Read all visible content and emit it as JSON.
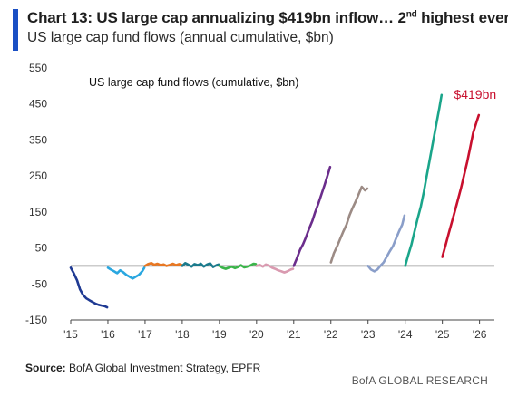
{
  "header": {
    "title_main": "Chart 13: US large cap annualizing $419bn inflow… 2",
    "title_sup": "nd",
    "title_tail": " highest ever",
    "subtitle": "US large cap fund flows (annual cumulative, $bn)"
  },
  "footer": {
    "source_label": "Source:",
    "source_text": " BofA Global Investment Strategy, EPFR",
    "brand": "BofA GLOBAL RESEARCH"
  },
  "chart_data": {
    "type": "line",
    "title": "US large cap fund flows (cumulative, $bn)",
    "xlabel": "",
    "ylabel": "",
    "x_ticks": [
      "'15",
      "'16",
      "'17",
      "'18",
      "'19",
      "'20",
      "'21",
      "'22",
      "'23",
      "'24",
      "'25",
      "'26"
    ],
    "y_ticks": [
      550,
      450,
      350,
      250,
      150,
      50,
      -50,
      -150
    ],
    "xlim": [
      2015,
      2026.4
    ],
    "ylim": [
      -150,
      550
    ],
    "grid": false,
    "zero_line": true,
    "annotation": {
      "text": "$419bn",
      "color": "#c8102e"
    },
    "series": [
      {
        "color": "#1f3a93",
        "points": [
          [
            2015.0,
            -5
          ],
          [
            2015.08,
            -20
          ],
          [
            2015.17,
            -40
          ],
          [
            2015.25,
            -65
          ],
          [
            2015.33,
            -80
          ],
          [
            2015.42,
            -90
          ],
          [
            2015.5,
            -95
          ],
          [
            2015.58,
            -100
          ],
          [
            2015.67,
            -105
          ],
          [
            2015.75,
            -108
          ],
          [
            2015.83,
            -110
          ],
          [
            2015.92,
            -112
          ],
          [
            2015.98,
            -115
          ]
        ]
      },
      {
        "color": "#2aa7e0",
        "points": [
          [
            2016.0,
            -5
          ],
          [
            2016.08,
            -10
          ],
          [
            2016.17,
            -15
          ],
          [
            2016.25,
            -20
          ],
          [
            2016.33,
            -12
          ],
          [
            2016.42,
            -18
          ],
          [
            2016.5,
            -25
          ],
          [
            2016.58,
            -30
          ],
          [
            2016.67,
            -35
          ],
          [
            2016.75,
            -30
          ],
          [
            2016.83,
            -25
          ],
          [
            2016.92,
            -15
          ],
          [
            2016.98,
            -5
          ]
        ]
      },
      {
        "color": "#e87722",
        "points": [
          [
            2017.0,
            0
          ],
          [
            2017.08,
            5
          ],
          [
            2017.17,
            8
          ],
          [
            2017.25,
            3
          ],
          [
            2017.33,
            6
          ],
          [
            2017.42,
            2
          ],
          [
            2017.5,
            4
          ],
          [
            2017.58,
            0
          ],
          [
            2017.67,
            3
          ],
          [
            2017.75,
            6
          ],
          [
            2017.83,
            2
          ],
          [
            2017.92,
            5
          ],
          [
            2017.98,
            3
          ]
        ]
      },
      {
        "color": "#1a7a8c",
        "points": [
          [
            2018.0,
            0
          ],
          [
            2018.08,
            8
          ],
          [
            2018.17,
            3
          ],
          [
            2018.25,
            -2
          ],
          [
            2018.33,
            5
          ],
          [
            2018.42,
            2
          ],
          [
            2018.5,
            6
          ],
          [
            2018.58,
            -2
          ],
          [
            2018.67,
            4
          ],
          [
            2018.75,
            7
          ],
          [
            2018.83,
            -3
          ],
          [
            2018.92,
            2
          ],
          [
            2018.98,
            4
          ]
        ]
      },
      {
        "color": "#3bb54a",
        "points": [
          [
            2019.0,
            0
          ],
          [
            2019.08,
            -5
          ],
          [
            2019.17,
            -8
          ],
          [
            2019.25,
            -5
          ],
          [
            2019.33,
            -2
          ],
          [
            2019.42,
            -6
          ],
          [
            2019.5,
            -3
          ],
          [
            2019.58,
            2
          ],
          [
            2019.67,
            -4
          ],
          [
            2019.75,
            -2
          ],
          [
            2019.83,
            1
          ],
          [
            2019.92,
            6
          ],
          [
            2019.98,
            5
          ]
        ]
      },
      {
        "color": "#d99ab0",
        "points": [
          [
            2020.0,
            0
          ],
          [
            2020.08,
            3
          ],
          [
            2020.17,
            -2
          ],
          [
            2020.25,
            4
          ],
          [
            2020.33,
            1
          ],
          [
            2020.42,
            -5
          ],
          [
            2020.5,
            -8
          ],
          [
            2020.58,
            -12
          ],
          [
            2020.67,
            -15
          ],
          [
            2020.75,
            -18
          ],
          [
            2020.83,
            -15
          ],
          [
            2020.92,
            -10
          ],
          [
            2020.98,
            -8
          ]
        ]
      },
      {
        "color": "#6b2d8c",
        "points": [
          [
            2021.0,
            0
          ],
          [
            2021.08,
            20
          ],
          [
            2021.17,
            45
          ],
          [
            2021.25,
            60
          ],
          [
            2021.33,
            80
          ],
          [
            2021.42,
            105
          ],
          [
            2021.5,
            125
          ],
          [
            2021.58,
            150
          ],
          [
            2021.67,
            175
          ],
          [
            2021.75,
            200
          ],
          [
            2021.83,
            225
          ],
          [
            2021.92,
            255
          ],
          [
            2021.98,
            275
          ]
        ]
      },
      {
        "color": "#9c8b85",
        "points": [
          [
            2022.0,
            10
          ],
          [
            2022.08,
            35
          ],
          [
            2022.17,
            55
          ],
          [
            2022.25,
            75
          ],
          [
            2022.33,
            95
          ],
          [
            2022.42,
            115
          ],
          [
            2022.5,
            140
          ],
          [
            2022.58,
            160
          ],
          [
            2022.67,
            180
          ],
          [
            2022.75,
            200
          ],
          [
            2022.83,
            220
          ],
          [
            2022.92,
            210
          ],
          [
            2022.98,
            215
          ]
        ]
      },
      {
        "color": "#8a9ec9",
        "points": [
          [
            2023.0,
            0
          ],
          [
            2023.08,
            -10
          ],
          [
            2023.17,
            -15
          ],
          [
            2023.25,
            -10
          ],
          [
            2023.33,
            0
          ],
          [
            2023.42,
            10
          ],
          [
            2023.5,
            25
          ],
          [
            2023.58,
            40
          ],
          [
            2023.67,
            55
          ],
          [
            2023.75,
            75
          ],
          [
            2023.83,
            95
          ],
          [
            2023.92,
            115
          ],
          [
            2023.98,
            140
          ]
        ]
      },
      {
        "color": "#1aa58a",
        "points": [
          [
            2024.0,
            0
          ],
          [
            2024.08,
            30
          ],
          [
            2024.17,
            60
          ],
          [
            2024.25,
            95
          ],
          [
            2024.33,
            130
          ],
          [
            2024.42,
            165
          ],
          [
            2024.5,
            205
          ],
          [
            2024.58,
            250
          ],
          [
            2024.67,
            300
          ],
          [
            2024.75,
            345
          ],
          [
            2024.83,
            390
          ],
          [
            2024.92,
            440
          ],
          [
            2024.98,
            475
          ]
        ]
      },
      {
        "color": "#c8102e",
        "points": [
          [
            2025.0,
            25
          ],
          [
            2025.08,
            55
          ],
          [
            2025.17,
            90
          ],
          [
            2025.25,
            120
          ],
          [
            2025.33,
            150
          ],
          [
            2025.42,
            185
          ],
          [
            2025.5,
            215
          ],
          [
            2025.58,
            250
          ],
          [
            2025.67,
            290
          ],
          [
            2025.75,
            330
          ],
          [
            2025.83,
            370
          ],
          [
            2025.92,
            400
          ],
          [
            2025.98,
            419
          ]
        ]
      }
    ]
  }
}
